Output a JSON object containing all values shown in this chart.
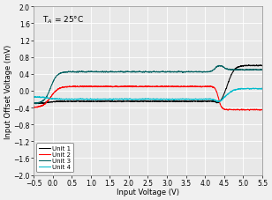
{
  "title": "T$_A$ = 25°C",
  "xlabel": "Input Voltage (V)",
  "ylabel": "Input Offset Voltage (mV)",
  "xlim": [
    -0.5,
    5.5
  ],
  "ylim": [
    -2,
    2
  ],
  "xticks": [
    -0.5,
    0,
    0.5,
    1,
    1.5,
    2,
    2.5,
    3,
    3.5,
    4,
    4.5,
    5,
    5.5
  ],
  "yticks": [
    -2,
    -1.6,
    -1.2,
    -0.8,
    -0.4,
    0,
    0.4,
    0.8,
    1.2,
    1.6,
    2
  ],
  "legend": [
    "Unit 1",
    "Unit 2",
    "Unit 3",
    "Unit 4"
  ],
  "colors": [
    "#000000",
    "#ff0000",
    "#006060",
    "#00bbcc"
  ],
  "background": "#e8e8e8",
  "grid_color": "#ffffff"
}
